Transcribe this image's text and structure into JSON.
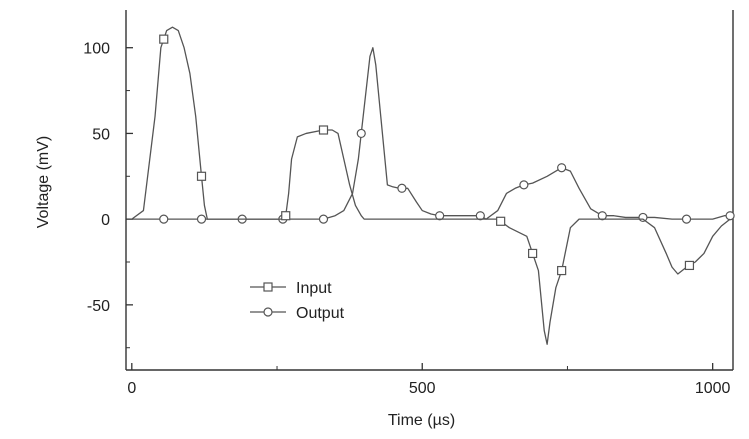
{
  "chart_data": {
    "type": "line",
    "title": "",
    "xlabel": "Time (µs)",
    "ylabel": "Voltage (mV)",
    "xlim": [
      -10,
      1035
    ],
    "ylim": [
      -88,
      122
    ],
    "x_ticks": [
      0,
      500,
      1000
    ],
    "x_tick_labels": [
      "0",
      "500",
      "1000"
    ],
    "y_ticks": [
      -50,
      0,
      50,
      100
    ],
    "y_tick_labels": [
      "-50",
      "0",
      "50",
      "100"
    ],
    "grid": false,
    "legend_placement": "lower-left",
    "line_color": "#555555",
    "series": [
      {
        "name": "Input",
        "marker": "square",
        "points": [
          [
            0,
            0
          ],
          [
            20,
            5
          ],
          [
            40,
            60
          ],
          [
            50,
            100
          ],
          [
            60,
            110
          ],
          [
            70,
            112
          ],
          [
            80,
            110
          ],
          [
            90,
            100
          ],
          [
            100,
            85
          ],
          [
            110,
            60
          ],
          [
            120,
            25
          ],
          [
            125,
            8
          ],
          [
            130,
            0
          ],
          [
            260,
            0
          ],
          [
            265,
            2
          ],
          [
            270,
            15
          ],
          [
            275,
            35
          ],
          [
            285,
            48
          ],
          [
            300,
            50
          ],
          [
            330,
            52
          ],
          [
            345,
            52
          ],
          [
            355,
            50
          ],
          [
            365,
            35
          ],
          [
            375,
            20
          ],
          [
            385,
            8
          ],
          [
            395,
            2
          ],
          [
            400,
            0
          ],
          [
            630,
            0
          ],
          [
            650,
            -5
          ],
          [
            680,
            -10
          ],
          [
            700,
            -30
          ],
          [
            710,
            -65
          ],
          [
            715,
            -73
          ],
          [
            720,
            -60
          ],
          [
            730,
            -40
          ],
          [
            740,
            -30
          ],
          [
            755,
            -5
          ],
          [
            770,
            0
          ],
          [
            880,
            0
          ],
          [
            900,
            -5
          ],
          [
            920,
            -20
          ],
          [
            930,
            -28
          ],
          [
            940,
            -32
          ],
          [
            955,
            -28
          ],
          [
            970,
            -25
          ],
          [
            985,
            -20
          ],
          [
            1000,
            -10
          ],
          [
            1015,
            -4
          ],
          [
            1030,
            0
          ]
        ],
        "marker_x": [
          55,
          120,
          265,
          330,
          635,
          690,
          740,
          960
        ]
      },
      {
        "name": "Output",
        "marker": "circle",
        "points": [
          [
            0,
            0
          ],
          [
            330,
            0
          ],
          [
            350,
            2
          ],
          [
            365,
            5
          ],
          [
            380,
            15
          ],
          [
            390,
            35
          ],
          [
            400,
            65
          ],
          [
            410,
            95
          ],
          [
            415,
            100
          ],
          [
            420,
            90
          ],
          [
            430,
            55
          ],
          [
            440,
            20
          ],
          [
            448,
            19
          ],
          [
            460,
            18
          ],
          [
            475,
            18
          ],
          [
            490,
            10
          ],
          [
            500,
            5
          ],
          [
            515,
            3
          ],
          [
            530,
            2
          ],
          [
            560,
            2
          ],
          [
            580,
            2
          ],
          [
            600,
            2
          ],
          [
            610,
            0
          ],
          [
            630,
            5
          ],
          [
            645,
            15
          ],
          [
            660,
            18
          ],
          [
            675,
            20
          ],
          [
            690,
            21
          ],
          [
            715,
            25
          ],
          [
            740,
            30
          ],
          [
            755,
            28
          ],
          [
            770,
            18
          ],
          [
            790,
            6
          ],
          [
            810,
            2
          ],
          [
            830,
            2
          ],
          [
            850,
            1
          ],
          [
            870,
            1
          ],
          [
            900,
            1
          ],
          [
            930,
            0
          ],
          [
            960,
            0
          ],
          [
            980,
            0
          ],
          [
            1000,
            0
          ],
          [
            1020,
            2
          ],
          [
            1035,
            2
          ]
        ],
        "marker_x": [
          55,
          120,
          190,
          260,
          330,
          395,
          465,
          530,
          600,
          675,
          740,
          810,
          880,
          955,
          1030
        ]
      }
    ]
  }
}
